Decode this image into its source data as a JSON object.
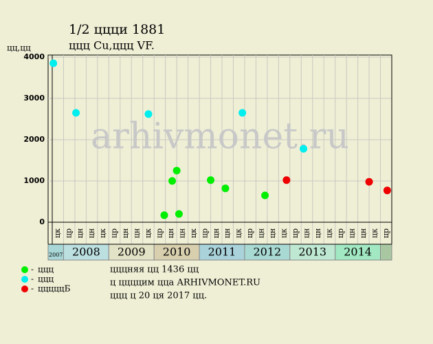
{
  "chart_data": {
    "type": "scatter",
    "title": "1/2 ццци 1881",
    "subtitle": "ццц Cu,ццц VF.",
    "y_label": "цц,цц",
    "watermark": "arhivmonet.ru",
    "ylim": [
      0,
      4000
    ],
    "yticks": [
      0,
      1000,
      2000,
      3000,
      4000
    ],
    "xlim": [
      0,
      30
    ],
    "grid": true,
    "columns": [
      "цк",
      "цр",
      "цн",
      "цн",
      "цк",
      "цр",
      "цн",
      "цн",
      "цк",
      "цр",
      "цн",
      "цн",
      "цк",
      "цр",
      "цн",
      "цн",
      "цк",
      "цр",
      "цн",
      "цн",
      "цк",
      "цр",
      "цн",
      "цн",
      "цк",
      "цр",
      "цн",
      "цн",
      "цк",
      "цр"
    ],
    "years": [
      {
        "label": "2007",
        "start": 0,
        "end": 1,
        "color": "#a9d6d6"
      },
      {
        "label": "2008",
        "start": 1,
        "end": 5,
        "color": "#bcdfe0"
      },
      {
        "label": "2009",
        "start": 5,
        "end": 9,
        "color": "#e2e2c6"
      },
      {
        "label": "2010",
        "start": 9,
        "end": 13,
        "color": "#d8cfae"
      },
      {
        "label": "2011",
        "start": 13,
        "end": 17,
        "color": "#a9d2da"
      },
      {
        "label": "2012",
        "start": 17,
        "end": 21,
        "color": "#a9d9d3"
      },
      {
        "label": "2013",
        "start": 21,
        "end": 25,
        "color": "#bfe8d2"
      },
      {
        "label": "2014",
        "start": 25,
        "end": 29,
        "color": "#a2e8c2"
      },
      {
        "start": 29,
        "end": 30,
        "color": "#a9c8a2"
      }
    ],
    "series": [
      {
        "name": "ццц",
        "color": "#00ee00",
        "x": [
          9.9,
          10.6,
          11.0,
          11.2,
          14.0,
          15.3,
          18.8
        ],
        "values": [
          170,
          1000,
          1250,
          200,
          1020,
          820,
          650
        ]
      },
      {
        "name": "ццц",
        "color": "#00eeee",
        "x": [
          0.1,
          2.1,
          8.5,
          16.8,
          22.2
        ],
        "values": [
          3850,
          2650,
          2620,
          2650,
          1780
        ]
      },
      {
        "name": "цццццБ",
        "color": "#ee0000",
        "x": [
          20.7,
          28.0,
          29.6
        ],
        "values": [
          1020,
          980,
          770
        ]
      }
    ],
    "footer": [
      "цццняя цц 1436 цц",
      "ц ццццим цца ARHIVMONET.RU",
      "ццц ц 20 ця 2017 цц."
    ]
  }
}
